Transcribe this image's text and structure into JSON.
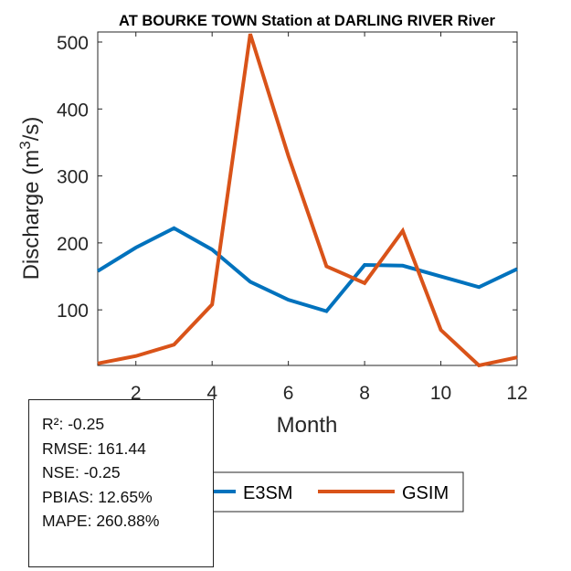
{
  "chart_data": {
    "type": "line",
    "title": "AT BOURKE TOWN  Station at  DARLING RIVER  River",
    "xlabel": "Month",
    "ylabel": "Discharge (m³/s)",
    "ylabel_parts": {
      "main": "Discharge (m",
      "sup": "3",
      "tail": "/s)"
    },
    "x": [
      1,
      2,
      3,
      4,
      5,
      6,
      7,
      8,
      9,
      10,
      11,
      12
    ],
    "xlim": [
      1,
      12
    ],
    "ylim": [
      17,
      515
    ],
    "xticks": [
      2,
      4,
      6,
      8,
      10,
      12
    ],
    "yticks": [
      100,
      200,
      300,
      400,
      500
    ],
    "grid": false,
    "legend_placement": "bottom-center",
    "series": [
      {
        "name": "E3SM",
        "color": "#0072BD",
        "values": [
          158,
          193,
          222,
          190,
          142,
          115,
          98,
          167,
          166,
          150,
          134,
          161
        ]
      },
      {
        "name": "GSIM",
        "color": "#D95319",
        "values": [
          20,
          31,
          48,
          108,
          512,
          330,
          165,
          140,
          218,
          70,
          17,
          29
        ]
      }
    ]
  },
  "stats": {
    "r2": "R²: -0.25",
    "rmse": "RMSE: 161.44",
    "nse": "NSE: -0.25",
    "pbias": "PBIAS: 12.65%",
    "mape": "MAPE: 260.88%"
  }
}
